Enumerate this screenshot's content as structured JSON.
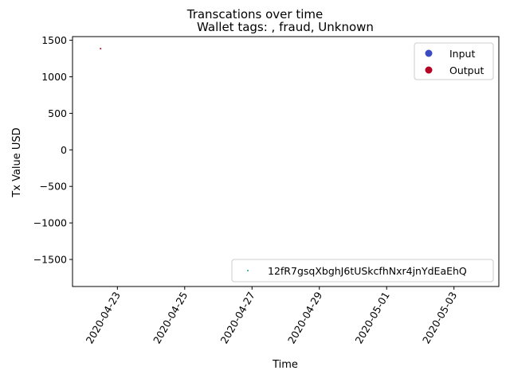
{
  "chart_data": {
    "type": "scatter",
    "suptitle": "Transcations over time",
    "title": "Wallet tags: , fraud, Unknown",
    "xlabel": "Time",
    "ylabel": "Tx Value USD",
    "x_ticks": [
      "2020-04-23",
      "2020-04-25",
      "2020-04-27",
      "2020-04-29",
      "2020-05-01",
      "2020-05-03"
    ],
    "y_ticks": [
      1500,
      1000,
      500,
      0,
      -500,
      -1000,
      -1500
    ],
    "y_tick_labels": [
      "1500",
      "1000",
      "500",
      "0",
      "−500",
      "−1000",
      "−1500"
    ],
    "xlim": [
      "2020-04-21T16:00",
      "2020-05-04T08:00"
    ],
    "ylim": [
      -1870,
      1550
    ],
    "series": [
      {
        "name": "Output",
        "color": "#b40426",
        "points": [
          {
            "x": "2020-04-22T12:00",
            "y": 1385
          }
        ]
      }
    ],
    "legends": [
      {
        "placement": "upper-right",
        "entries": [
          {
            "label": "Input",
            "color": "#3b4cc0",
            "marker": "circle"
          },
          {
            "label": "Output",
            "color": "#b40426",
            "marker": "circle"
          }
        ]
      },
      {
        "placement": "lower-right",
        "entries": [
          {
            "label": "12fR7gsqXbghJ6tUSkcfhNxr4jnYdEaEhQ",
            "color": "#1f9e89",
            "marker": "dot"
          }
        ]
      }
    ]
  }
}
